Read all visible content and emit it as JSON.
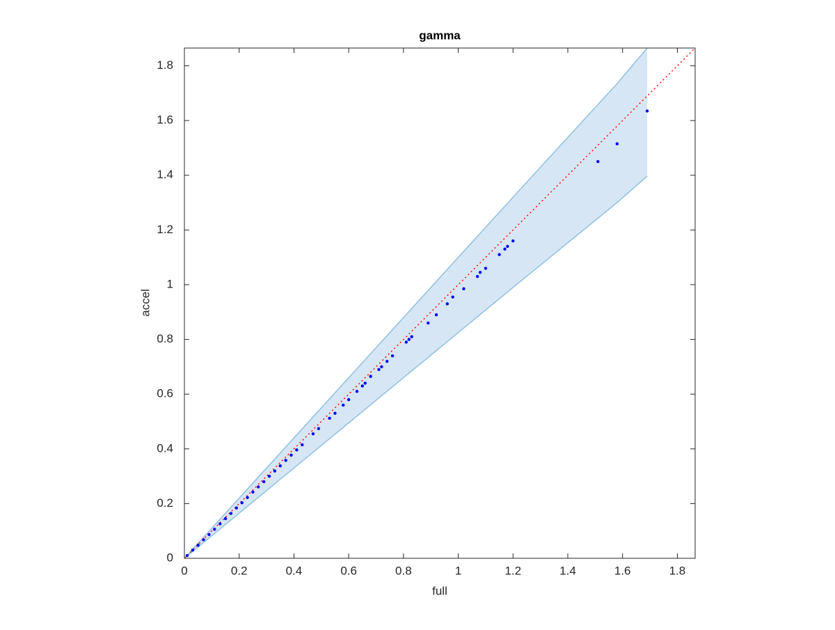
{
  "chart_data": {
    "type": "scatter",
    "title": "gamma",
    "x_label": "full",
    "y_label": "accel",
    "xlim": [
      0,
      1.865
    ],
    "ylim": [
      0,
      1.865
    ],
    "xticks": [
      0,
      0.2,
      0.4,
      0.6,
      0.8,
      1,
      1.2,
      1.4,
      1.6,
      1.8
    ],
    "yticks": [
      0,
      0.2,
      0.4,
      0.6,
      0.8,
      1,
      1.2,
      1.4,
      1.6,
      1.8
    ],
    "color": "#0000ff",
    "x": [
      0.01,
      0.03,
      0.05,
      0.07,
      0.09,
      0.11,
      0.13,
      0.15,
      0.17,
      0.19,
      0.21,
      0.23,
      0.25,
      0.27,
      0.29,
      0.31,
      0.33,
      0.35,
      0.37,
      0.39,
      0.41,
      0.43,
      0.47,
      0.49,
      0.53,
      0.55,
      0.58,
      0.6,
      0.63,
      0.65,
      0.66,
      0.68,
      0.71,
      0.72,
      0.74,
      0.76,
      0.81,
      0.82,
      0.83,
      0.89,
      0.92,
      0.96,
      0.98,
      1.02,
      1.07,
      1.08,
      1.1,
      1.15,
      1.17,
      1.18,
      1.2,
      1.51,
      1.58,
      1.69
    ],
    "values": [
      0.01,
      0.03,
      0.048,
      0.068,
      0.087,
      0.106,
      0.126,
      0.145,
      0.164,
      0.184,
      0.203,
      0.222,
      0.242,
      0.261,
      0.28,
      0.3,
      0.319,
      0.338,
      0.358,
      0.377,
      0.396,
      0.415,
      0.455,
      0.474,
      0.512,
      0.53,
      0.56,
      0.58,
      0.61,
      0.63,
      0.64,
      0.665,
      0.69,
      0.7,
      0.72,
      0.74,
      0.79,
      0.8,
      0.81,
      0.86,
      0.89,
      0.93,
      0.955,
      0.985,
      1.03,
      1.045,
      1.06,
      1.11,
      1.13,
      1.14,
      1.16,
      1.45,
      1.515,
      1.635
    ],
    "band": {
      "x": [
        0,
        0.4,
        0.8,
        1.2,
        1.58,
        1.69
      ],
      "upper": [
        0,
        0.44,
        0.88,
        1.32,
        1.735,
        1.865
      ],
      "lower": [
        0,
        0.33,
        0.66,
        0.99,
        1.3,
        1.397
      ],
      "fill": "#d6e6f4",
      "edge": "#8fc0e0"
    },
    "reference_line": {
      "x": [
        0,
        1.865
      ],
      "y": [
        0,
        1.865
      ],
      "color": "#ff0000"
    }
  }
}
